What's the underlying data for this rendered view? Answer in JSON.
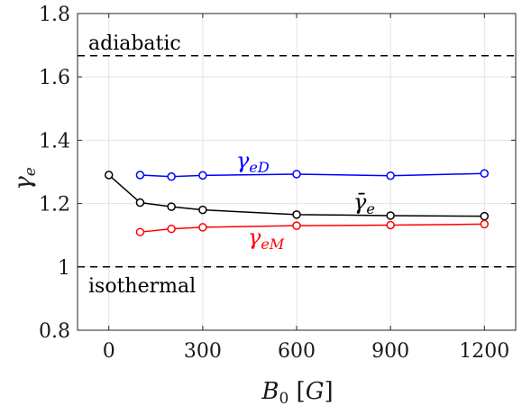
{
  "chart_data": {
    "type": "line",
    "xlabel": "B₀ [G]",
    "ylabel": "γₑ",
    "xlim": [
      -100,
      1300
    ],
    "ylim": [
      0.8,
      1.8
    ],
    "xticks": [
      0,
      300,
      600,
      900,
      1200
    ],
    "xtick_labels": [
      "0",
      "300",
      "600",
      "900",
      "1200"
    ],
    "yticks": [
      0.8,
      1,
      1.2,
      1.4,
      1.6,
      1.8
    ],
    "ytick_labels": [
      "0.8",
      "1",
      "1.2",
      "1.4",
      "1.6",
      "1.8"
    ],
    "grid": true,
    "reference_lines": [
      {
        "label": "adiabatic",
        "y": 1.6667,
        "style": "dashed",
        "color": "#000000"
      },
      {
        "label": "isothermal",
        "y": 1.0,
        "style": "dashed",
        "color": "#000000"
      }
    ],
    "series": [
      {
        "name": "γeD",
        "color": "#0000ff",
        "x": [
          100,
          200,
          300,
          600,
          900,
          1200
        ],
        "y": [
          1.29,
          1.285,
          1.289,
          1.293,
          1.288,
          1.295
        ]
      },
      {
        "name": "γ̄e",
        "color": "#000000",
        "x": [
          0,
          100,
          200,
          300,
          600,
          900,
          1200
        ],
        "y": [
          1.29,
          1.203,
          1.19,
          1.18,
          1.165,
          1.162,
          1.16
        ]
      },
      {
        "name": "γeM",
        "color": "#ff0000",
        "x": [
          100,
          200,
          300,
          600,
          900,
          1200
        ],
        "y": [
          1.11,
          1.12,
          1.125,
          1.13,
          1.132,
          1.135
        ]
      }
    ]
  }
}
